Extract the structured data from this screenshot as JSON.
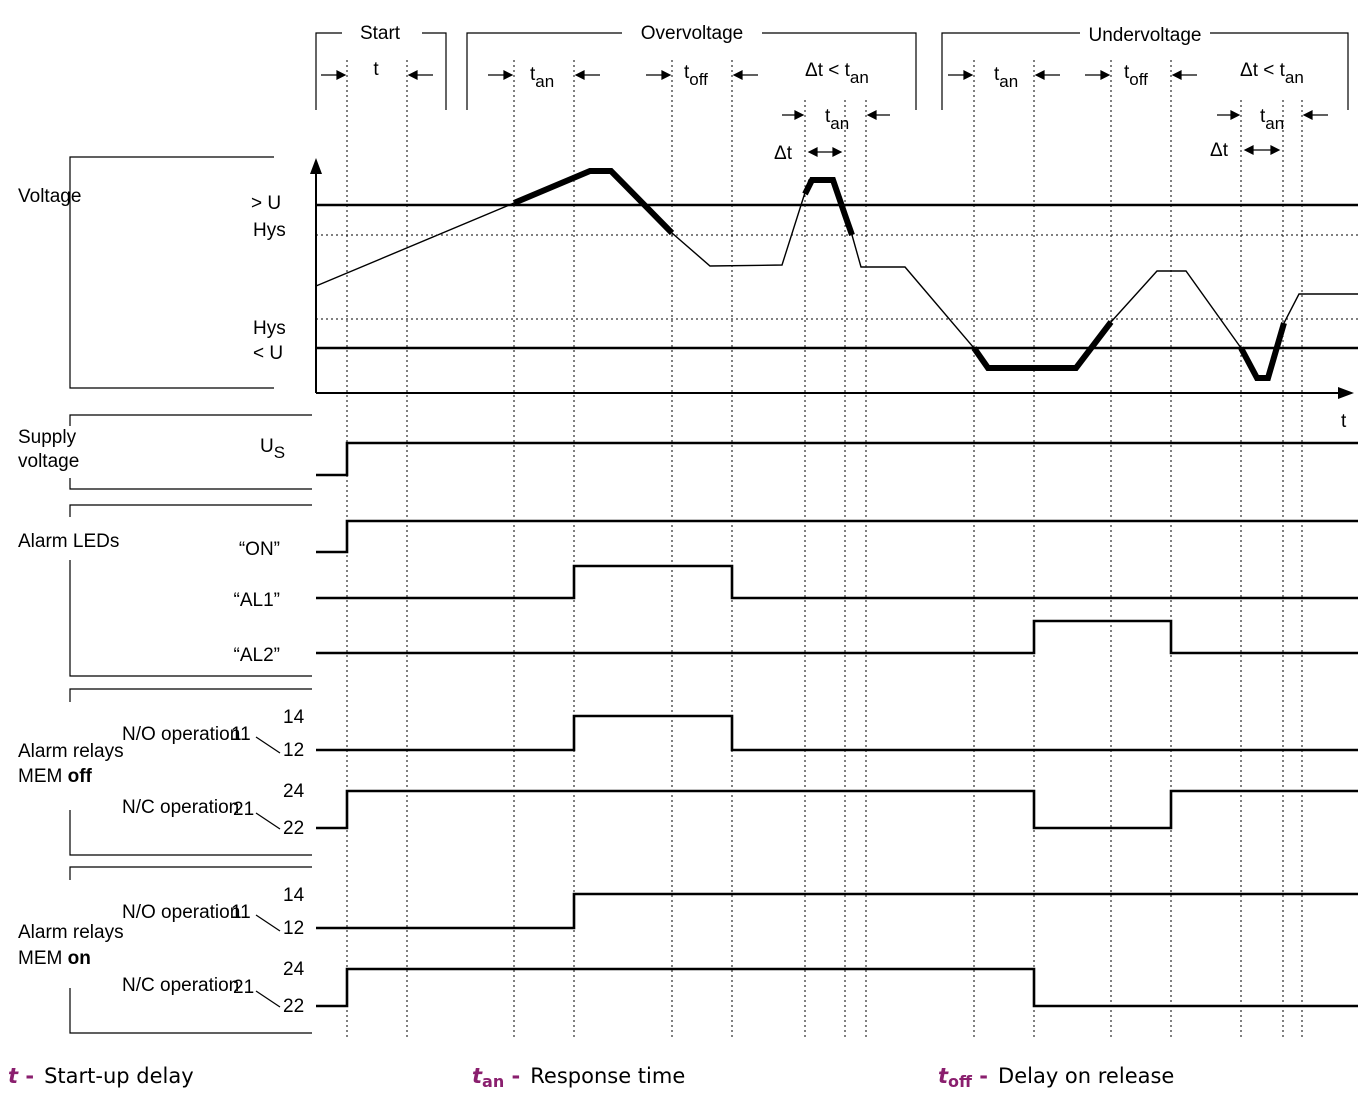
{
  "phases": {
    "start": "Start",
    "overvoltage": "Overvoltage",
    "undervoltage": "Undervoltage"
  },
  "intervals": {
    "t": "t",
    "t_an": "t",
    "t_an_sub": "an",
    "t_off": "t",
    "t_off_sub": "off",
    "delta_t": "Δt",
    "delta_lt": "Δt < t",
    "delta_lt_sub": "an"
  },
  "rows": {
    "voltage": "Voltage",
    "over_u": "> U",
    "hys": "Hys",
    "under_u": "< U",
    "time_axis": "t",
    "supply_line1": "Supply",
    "supply_line2": "voltage",
    "us": "U",
    "us_sub": "S",
    "alarm_leds": "Alarm LEDs",
    "led_on": "“ON”",
    "led_al1": "“AL1”",
    "led_al2": "“AL2”",
    "relays_label": "Alarm relays",
    "mem": "MEM",
    "mem_off": "off",
    "mem_on": "on",
    "no_operation": "N/O operation",
    "nc_operation": "N/C operation",
    "pin_11": "11",
    "pin_12": "12",
    "pin_14": "14",
    "pin_21": "21",
    "pin_22": "22",
    "pin_24": "24"
  },
  "legend": [
    {
      "symbol": "t",
      "sub": "",
      "text": "Start-up delay"
    },
    {
      "symbol": "t",
      "sub": "an",
      "text": "Response time"
    },
    {
      "symbol": "t",
      "sub": "off",
      "text": "Delay on release"
    }
  ],
  "colors": {
    "ink": "#000000",
    "legend_symbol": "#8a1f6e"
  }
}
